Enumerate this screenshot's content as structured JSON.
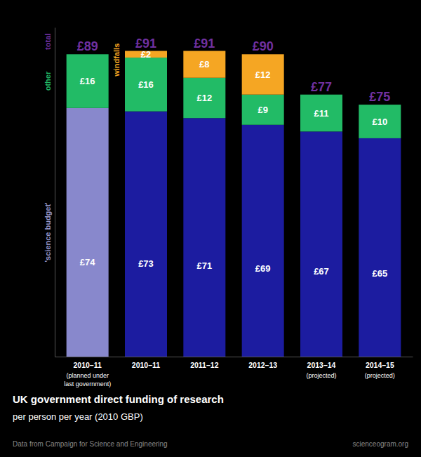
{
  "chart_data": {
    "type": "bar",
    "stacked": true,
    "data_labels": true,
    "tick_labels": "x",
    "title": "UK government direct funding of research",
    "subtitle": "per person per year (2010 GBP)",
    "categories": [
      "2010–11\n(planned under\nlast government)",
      "2010–11",
      "2011–12",
      "2012–13",
      "2013–14\n(projected)",
      "2014–15\n(projected)"
    ],
    "series": [
      {
        "colors": [
          "#8888cc",
          "#1c1ca0",
          "#1c1ca0",
          "#1c1ca0",
          "#1c1ca0",
          "#1c1ca0"
        ],
        "values": [
          74,
          73,
          71,
          69,
          67,
          65
        ],
        "value_labels": [
          "£74",
          "£73",
          "£71",
          "£69",
          "£67",
          "£65"
        ]
      },
      {
        "color": "#22bb66",
        "values": [
          16,
          16,
          12,
          9,
          11,
          10
        ],
        "value_labels": [
          "£16",
          "£16",
          "£12",
          "£9",
          "£11",
          "£10"
        ]
      },
      {
        "color": "#f5a623",
        "values": [
          0,
          2,
          8,
          12,
          0,
          0
        ],
        "value_labels": [
          null,
          "£2",
          "£8",
          "£12",
          null,
          null
        ]
      }
    ],
    "totals": {
      "color": "#7030a0",
      "values": [
        89,
        91,
        91,
        90,
        77,
        75
      ],
      "value_labels": [
        "£89",
        "£91",
        "£91",
        "£90",
        "£77",
        "£75"
      ]
    },
    "annotations": [
      {
        "text": "total",
        "color": "#7030a0"
      },
      {
        "text": "other",
        "color": "#22bb66"
      },
      {
        "text": "'science budget'",
        "color": "#9999cc"
      },
      {
        "text": "windfalls",
        "color": "#f5a623"
      },
      {
        "text": "Data from Campaign for Science and Engineering"
      },
      {
        "text": "scienceogram.org"
      }
    ],
    "ylim": [
      0,
      98
    ]
  }
}
